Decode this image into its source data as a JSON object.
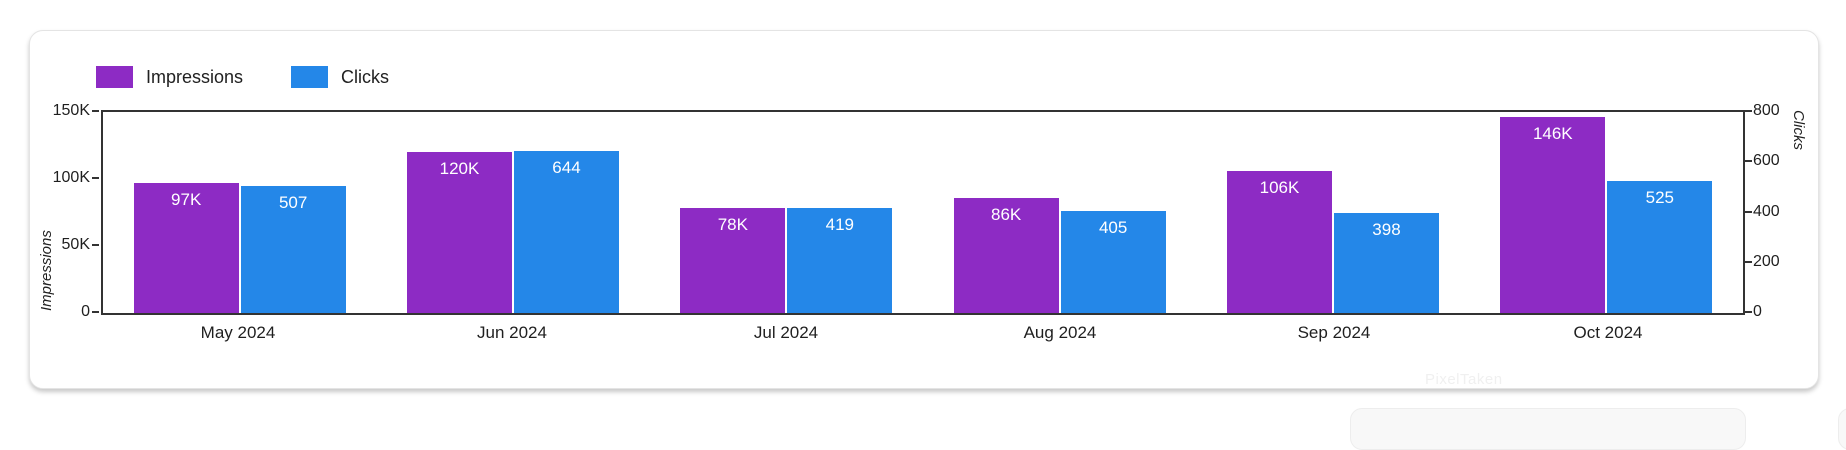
{
  "page": {
    "background": "#ffffff",
    "watermark": "PixelTaken"
  },
  "legend": {
    "items": [
      {
        "label": "Impressions",
        "color": "#8d2bc4"
      },
      {
        "label": "Clicks",
        "color": "#2487e8"
      }
    ]
  },
  "chart_data": {
    "type": "bar",
    "categories": [
      "May 2024",
      "Jun 2024",
      "Jul 2024",
      "Aug 2024",
      "Sep 2024",
      "Oct 2024"
    ],
    "series": [
      {
        "name": "Impressions",
        "axis": "left",
        "color": "#8d2bc4",
        "values": [
          97000,
          120000,
          78000,
          86000,
          106000,
          146000
        ],
        "labels": [
          "97K",
          "120K",
          "78K",
          "86K",
          "106K",
          "146K"
        ]
      },
      {
        "name": "Clicks",
        "axis": "right",
        "color": "#2487e8",
        "values": [
          507,
          644,
          419,
          405,
          398,
          525
        ],
        "labels": [
          "507",
          "644",
          "419",
          "405",
          "398",
          "525"
        ]
      }
    ],
    "left_axis": {
      "title": "Impressions",
      "min": 0,
      "max": 150000,
      "ticks": [
        "150K",
        "100K",
        "50K",
        "0"
      ]
    },
    "right_axis": {
      "title": "Clicks",
      "min": 0,
      "max": 800,
      "ticks": [
        "800",
        "600",
        "400",
        "200",
        "0"
      ]
    },
    "legend_position": "top-left",
    "grid": false,
    "value_labels": "inside-top",
    "frame_color": "#333333"
  }
}
